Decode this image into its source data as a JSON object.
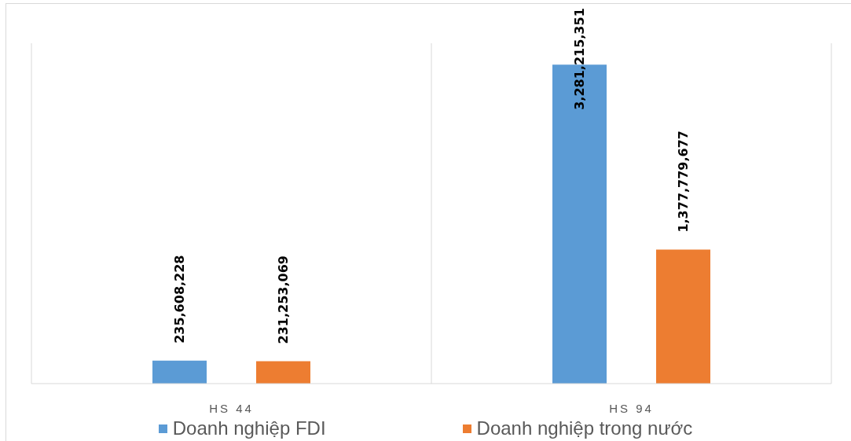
{
  "chart_data": {
    "type": "bar",
    "categories": [
      "HS 44",
      "HS 94"
    ],
    "series": [
      {
        "name": "Doanh nghiệp FDI",
        "color": "#5b9bd5",
        "values": [
          235608228,
          3281215351
        ],
        "value_labels": [
          "235,608,228",
          "3,281,215,351"
        ]
      },
      {
        "name": "Doanh nghiệp trong nước",
        "color": "#ed7d31",
        "values": [
          231253069,
          1377779677
        ],
        "value_labels": [
          "231,253,069",
          "1,377,779,677"
        ]
      }
    ],
    "tick_labels": "x",
    "grid": "x",
    "legend": "bottom"
  }
}
